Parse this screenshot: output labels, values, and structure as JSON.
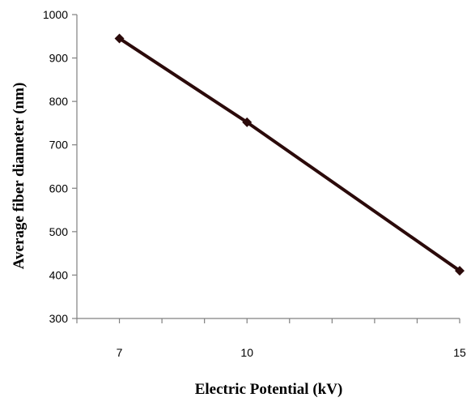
{
  "chart_data": {
    "type": "line",
    "xlabel": "Electric Potential (kV)",
    "ylabel": "Average fiber diameter   (nm)",
    "xlim": [
      6,
      15
    ],
    "ylim": [
      300,
      1000
    ],
    "x_ticks": [
      7,
      10,
      15
    ],
    "y_ticks": [
      300,
      400,
      500,
      600,
      700,
      800,
      900,
      1000
    ],
    "grid": false,
    "legend": "none",
    "series": [
      {
        "x": [
          7,
          10,
          15
        ],
        "y": [
          945,
          752,
          410
        ],
        "color": "#2b0a0a",
        "marker": "diamond"
      }
    ]
  }
}
